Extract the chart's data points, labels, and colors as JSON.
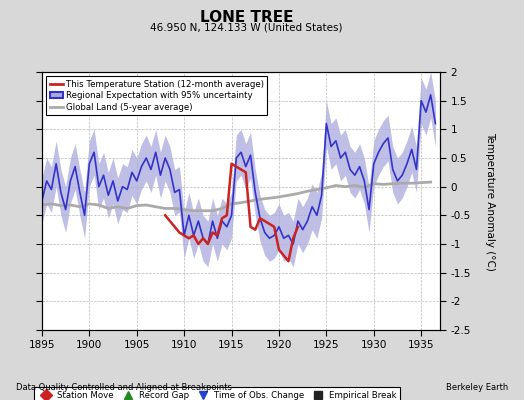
{
  "title": "LONE TREE",
  "subtitle": "46.950 N, 124.133 W (United States)",
  "xlabel_bottom": "Data Quality Controlled and Aligned at Breakpoints",
  "xlabel_right": "Berkeley Earth",
  "ylabel": "Temperature Anomaly (°C)",
  "xlim": [
    1895,
    1937
  ],
  "ylim": [
    -2.5,
    2.0
  ],
  "yticks": [
    -2.5,
    -2.0,
    -1.5,
    -1.0,
    -0.5,
    0.0,
    0.5,
    1.0,
    1.5,
    2.0
  ],
  "xticks": [
    1895,
    1900,
    1905,
    1910,
    1915,
    1920,
    1925,
    1930,
    1935
  ],
  "bg_color": "#d8d8d8",
  "plot_bg_color": "#ffffff",
  "regional_color": "#3333cc",
  "regional_fill_color": "#aaaadd",
  "station_color": "#cc2222",
  "global_color": "#aaaaaa",
  "legend_station": "This Temperature Station (12-month average)",
  "legend_regional": "Regional Expectation with 95% uncertainty",
  "legend_global": "Global Land (5-year average)",
  "bottom_legend": [
    {
      "label": "Station Move",
      "color": "#cc2222",
      "marker": "D"
    },
    {
      "label": "Record Gap",
      "color": "#228822",
      "marker": "^"
    },
    {
      "label": "Time of Obs. Change",
      "color": "#2244cc",
      "marker": "v"
    },
    {
      "label": "Empirical Break",
      "color": "#222222",
      "marker": "s"
    }
  ],
  "reg_x": [
    1895,
    1895.5,
    1896,
    1896.5,
    1897,
    1897.5,
    1898,
    1898.5,
    1899,
    1899.5,
    1900,
    1900.5,
    1901,
    1901.5,
    1902,
    1902.5,
    1903,
    1903.5,
    1904,
    1904.5,
    1905,
    1905.5,
    1906,
    1906.5,
    1907,
    1907.5,
    1908,
    1908.5,
    1909,
    1909.5,
    1910,
    1910.5,
    1911,
    1911.5,
    1912,
    1912.5,
    1913,
    1913.5,
    1914,
    1914.5,
    1915,
    1915.5,
    1916,
    1916.5,
    1917,
    1917.5,
    1918,
    1918.5,
    1919,
    1919.5,
    1920,
    1920.5,
    1921,
    1921.5,
    1922,
    1922.5,
    1923,
    1923.5,
    1924,
    1924.5,
    1925,
    1925.5,
    1926,
    1926.5,
    1927,
    1927.5,
    1928,
    1928.5,
    1929,
    1929.5,
    1930,
    1930.5,
    1931,
    1931.5,
    1932,
    1932.5,
    1933,
    1933.5,
    1934,
    1934.5,
    1935,
    1935.5,
    1936,
    1936.5
  ],
  "reg_y": [
    -0.25,
    0.1,
    -0.05,
    0.4,
    -0.1,
    -0.4,
    0.1,
    0.35,
    -0.1,
    -0.5,
    0.4,
    0.6,
    0.0,
    0.2,
    -0.15,
    0.1,
    -0.25,
    0.0,
    -0.05,
    0.25,
    0.1,
    0.35,
    0.5,
    0.3,
    0.6,
    0.2,
    0.5,
    0.3,
    -0.1,
    -0.05,
    -0.85,
    -0.5,
    -0.85,
    -0.6,
    -0.9,
    -1.0,
    -0.6,
    -0.9,
    -0.6,
    -0.7,
    -0.5,
    0.5,
    0.6,
    0.35,
    0.55,
    -0.1,
    -0.55,
    -0.8,
    -0.9,
    -0.85,
    -0.7,
    -0.9,
    -0.85,
    -1.0,
    -0.6,
    -0.75,
    -0.6,
    -0.35,
    -0.5,
    -0.15,
    1.1,
    0.7,
    0.8,
    0.5,
    0.6,
    0.3,
    0.2,
    0.35,
    0.1,
    -0.4,
    0.4,
    0.6,
    0.75,
    0.85,
    0.3,
    0.1,
    0.2,
    0.4,
    0.65,
    0.3,
    1.5,
    1.3,
    1.6,
    1.1
  ],
  "reg_upper": [
    0.15,
    0.5,
    0.35,
    0.8,
    0.3,
    0.0,
    0.5,
    0.75,
    0.3,
    -0.1,
    0.8,
    1.0,
    0.4,
    0.6,
    0.25,
    0.5,
    0.15,
    0.4,
    0.35,
    0.65,
    0.5,
    0.75,
    0.9,
    0.7,
    1.0,
    0.6,
    0.9,
    0.7,
    0.3,
    0.35,
    -0.45,
    -0.1,
    -0.45,
    -0.2,
    -0.5,
    -0.6,
    -0.2,
    -0.5,
    -0.2,
    -0.3,
    -0.1,
    0.9,
    1.0,
    0.75,
    0.95,
    0.3,
    -0.15,
    -0.4,
    -0.5,
    -0.45,
    -0.3,
    -0.5,
    -0.45,
    -0.6,
    -0.2,
    -0.35,
    -0.2,
    0.05,
    -0.1,
    0.25,
    1.5,
    1.1,
    1.2,
    0.9,
    1.0,
    0.7,
    0.6,
    0.75,
    0.5,
    0.0,
    0.8,
    1.0,
    1.15,
    1.25,
    0.7,
    0.5,
    0.6,
    0.8,
    1.05,
    0.7,
    1.9,
    1.7,
    2.0,
    1.5
  ],
  "reg_lower": [
    -0.65,
    -0.3,
    -0.45,
    0.0,
    -0.5,
    -0.8,
    -0.3,
    -0.05,
    -0.5,
    -0.9,
    0.0,
    0.2,
    -0.4,
    -0.2,
    -0.55,
    -0.3,
    -0.65,
    -0.4,
    -0.45,
    -0.15,
    -0.3,
    -0.05,
    0.1,
    -0.1,
    0.2,
    -0.2,
    0.1,
    -0.1,
    -0.5,
    -0.45,
    -1.25,
    -0.9,
    -1.25,
    -1.0,
    -1.3,
    -1.4,
    -1.0,
    -1.3,
    -1.0,
    -1.1,
    -0.9,
    0.1,
    0.2,
    -0.05,
    0.15,
    -0.5,
    -0.95,
    -1.2,
    -1.3,
    -1.25,
    -1.1,
    -1.3,
    -1.25,
    -1.4,
    -1.0,
    -1.15,
    -1.0,
    -0.75,
    -0.9,
    -0.55,
    0.7,
    0.3,
    0.4,
    0.1,
    0.2,
    -0.1,
    -0.2,
    -0.05,
    -0.3,
    -0.8,
    0.0,
    0.2,
    0.35,
    0.45,
    -0.1,
    -0.3,
    -0.2,
    0.0,
    0.25,
    -0.1,
    1.1,
    0.9,
    1.2,
    0.7
  ],
  "st_x": [
    1908,
    1908.5,
    1909,
    1909.5,
    1910,
    1910.5,
    1911,
    1911.5,
    1912,
    1912.5,
    1913,
    1913.5,
    1914,
    1914.5,
    1915,
    1915.5,
    1916,
    1916.5,
    1917,
    1917.5,
    1918,
    1918.5,
    1919,
    1919.5,
    1920,
    1920.5,
    1921,
    1921.5,
    1922
  ],
  "st_y": [
    -0.5,
    -0.6,
    -0.7,
    -0.8,
    -0.85,
    -0.9,
    -0.85,
    -1.0,
    -0.9,
    -1.0,
    -0.8,
    -0.85,
    -0.55,
    -0.5,
    0.4,
    0.35,
    0.3,
    0.25,
    -0.7,
    -0.75,
    -0.55,
    -0.6,
    -0.65,
    -0.7,
    -1.1,
    -1.2,
    -1.3,
    -0.9,
    -0.7
  ],
  "gl_x": [
    1895,
    1896,
    1897,
    1898,
    1899,
    1900,
    1901,
    1902,
    1903,
    1904,
    1905,
    1906,
    1907,
    1908,
    1909,
    1910,
    1911,
    1912,
    1913,
    1914,
    1915,
    1916,
    1917,
    1918,
    1919,
    1920,
    1921,
    1922,
    1923,
    1924,
    1925,
    1926,
    1927,
    1928,
    1929,
    1930,
    1931,
    1932,
    1933,
    1934,
    1935,
    1936
  ],
  "gl_y": [
    -0.32,
    -0.3,
    -0.33,
    -0.32,
    -0.35,
    -0.3,
    -0.32,
    -0.38,
    -0.35,
    -0.38,
    -0.33,
    -0.32,
    -0.35,
    -0.38,
    -0.38,
    -0.4,
    -0.42,
    -0.42,
    -0.42,
    -0.38,
    -0.3,
    -0.28,
    -0.25,
    -0.22,
    -0.2,
    -0.18,
    -0.15,
    -0.12,
    -0.08,
    -0.05,
    -0.02,
    0.02,
    0.0,
    0.02,
    -0.01,
    0.05,
    0.04,
    0.05,
    0.06,
    0.06,
    0.07,
    0.08
  ]
}
